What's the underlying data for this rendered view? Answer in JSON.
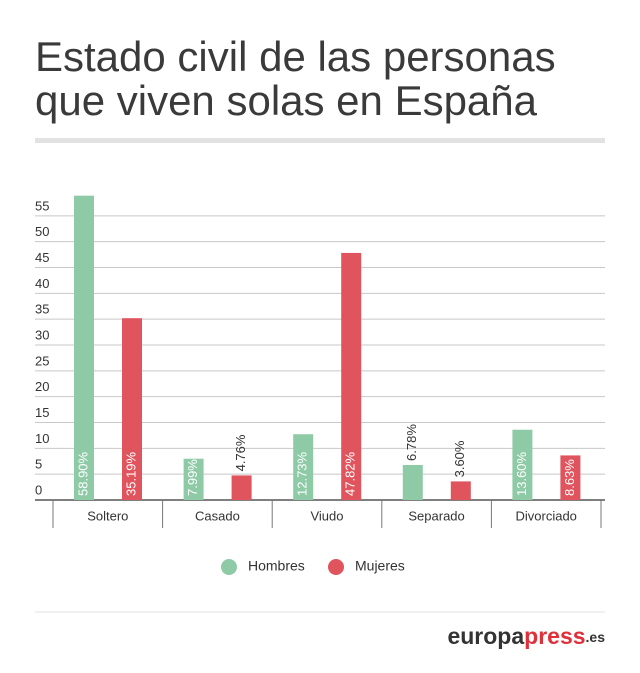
{
  "chart_data": {
    "type": "bar",
    "title": [
      "Estado civil de las personas",
      "que viven solas en España"
    ],
    "categories": [
      "Soltero",
      "Casado",
      "Viudo",
      "Separado",
      "Divorciado"
    ],
    "series": [
      {
        "name": "Hombres",
        "color": "#8fcaa7",
        "values": [
          58.9,
          7.99,
          12.73,
          6.78,
          13.6
        ],
        "value_labels": [
          "58.90%",
          "7.99%",
          "12.73%",
          "6.78%",
          "13.60%"
        ]
      },
      {
        "name": "Mujeres",
        "color": "#e0545e",
        "values": [
          35.19,
          4.76,
          47.82,
          3.6,
          8.63
        ],
        "value_labels": [
          "35.19%",
          "4.76%",
          "47.82%",
          "3.60%",
          "8.63%"
        ]
      }
    ],
    "ylim": [
      0,
      60
    ],
    "yticks": [
      0,
      5,
      10,
      15,
      20,
      25,
      30,
      35,
      40,
      45,
      50,
      55
    ],
    "grid": true,
    "legend": "bottom"
  },
  "logo": [
    "europa",
    "press",
    ".es"
  ]
}
